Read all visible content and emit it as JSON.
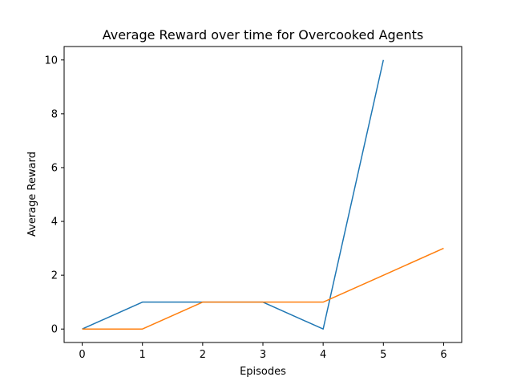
{
  "chart_data": {
    "type": "line",
    "title": "Average Reward over time for Overcooked Agents",
    "xlabel": "Episodes",
    "ylabel": "Average Reward",
    "x": [
      0,
      1,
      2,
      3,
      4,
      5,
      6
    ],
    "xlim": [
      -0.3,
      6.3
    ],
    "ylim": [
      -0.5,
      10.5
    ],
    "xticks": [
      0,
      1,
      2,
      3,
      4,
      5,
      6
    ],
    "yticks": [
      0,
      2,
      4,
      6,
      8,
      10
    ],
    "grid": false,
    "legend": "none",
    "series": [
      {
        "color": "#1f77b4",
        "x": [
          0,
          1,
          2,
          3,
          4,
          5
        ],
        "values": [
          0,
          1,
          1,
          1,
          0,
          10
        ]
      },
      {
        "color": "#ff7f0e",
        "x": [
          0,
          1,
          2,
          3,
          4,
          5,
          6
        ],
        "values": [
          0,
          0,
          1,
          1,
          1,
          2,
          3
        ]
      }
    ]
  }
}
